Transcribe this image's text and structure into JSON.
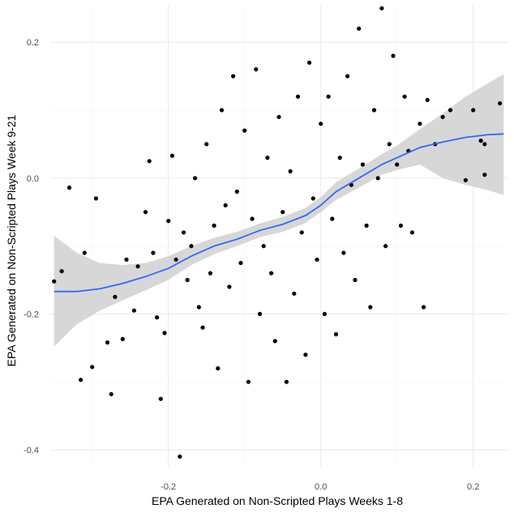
{
  "chart_data": {
    "type": "scatter",
    "title": "",
    "xlabel": "EPA Generated on Non-Scripted Plays Weeks 1-8",
    "ylabel": "EPA Generated on Non-Scripted Plays Week 9-21",
    "xlim": [
      -0.355,
      0.245
    ],
    "ylim": [
      -0.425,
      0.255
    ],
    "x_ticks": [
      -0.2,
      0.0,
      0.2
    ],
    "x_tick_labels": [
      "-0.2",
      "0.0",
      "0.2"
    ],
    "y_ticks": [
      -0.4,
      -0.2,
      0.0,
      0.2
    ],
    "y_tick_labels": [
      "-0.4",
      "-0.2",
      "0.0",
      "0.2"
    ],
    "grid": true,
    "legend": "none",
    "colors": {
      "points": "#000000",
      "smooth_line": "#3366ff",
      "confidence_band": "#d3d3d3",
      "grid_major": "#ebebeb",
      "grid_minor": "#f5f5f5"
    },
    "smooth": {
      "method": "loess",
      "x": [
        -0.35,
        -0.32,
        -0.29,
        -0.26,
        -0.23,
        -0.2,
        -0.17,
        -0.14,
        -0.11,
        -0.08,
        -0.05,
        -0.02,
        0.0,
        0.02,
        0.05,
        0.08,
        0.1,
        0.13,
        0.16,
        0.19,
        0.22,
        0.24
      ],
      "y": [
        -0.167,
        -0.167,
        -0.163,
        -0.155,
        -0.145,
        -0.133,
        -0.115,
        -0.1,
        -0.09,
        -0.077,
        -0.068,
        -0.055,
        -0.04,
        -0.02,
        0.0,
        0.02,
        0.03,
        0.045,
        0.053,
        0.06,
        0.064,
        0.065
      ],
      "ci_lower": [
        -0.248,
        -0.215,
        -0.195,
        -0.18,
        -0.165,
        -0.15,
        -0.128,
        -0.112,
        -0.1,
        -0.087,
        -0.079,
        -0.066,
        -0.05,
        -0.032,
        -0.014,
        0.005,
        0.012,
        0.02,
        0.0,
        -0.01,
        -0.018,
        -0.025
      ],
      "ci_upper": [
        -0.085,
        -0.11,
        -0.125,
        -0.128,
        -0.125,
        -0.115,
        -0.1,
        -0.088,
        -0.079,
        -0.067,
        -0.057,
        -0.044,
        -0.028,
        -0.006,
        0.014,
        0.035,
        0.048,
        0.072,
        0.095,
        0.12,
        0.14,
        0.153
      ]
    },
    "points": [
      [
        -0.35,
        -0.152
      ],
      [
        -0.34,
        -0.137
      ],
      [
        -0.33,
        -0.014
      ],
      [
        -0.315,
        -0.297
      ],
      [
        -0.31,
        -0.11
      ],
      [
        -0.3,
        -0.278
      ],
      [
        -0.295,
        -0.03
      ],
      [
        -0.28,
        -0.242
      ],
      [
        -0.275,
        -0.318
      ],
      [
        -0.27,
        -0.175
      ],
      [
        -0.26,
        -0.237
      ],
      [
        -0.255,
        -0.12
      ],
      [
        -0.245,
        -0.195
      ],
      [
        -0.24,
        -0.13
      ],
      [
        -0.23,
        -0.05
      ],
      [
        -0.225,
        0.025
      ],
      [
        -0.22,
        -0.11
      ],
      [
        -0.215,
        -0.205
      ],
      [
        -0.21,
        -0.325
      ],
      [
        -0.205,
        -0.228
      ],
      [
        -0.2,
        -0.063
      ],
      [
        -0.195,
        0.033
      ],
      [
        -0.19,
        -0.12
      ],
      [
        -0.185,
        -0.41
      ],
      [
        -0.18,
        -0.08
      ],
      [
        -0.175,
        -0.15
      ],
      [
        -0.17,
        -0.1
      ],
      [
        -0.165,
        0.0
      ],
      [
        -0.16,
        -0.19
      ],
      [
        -0.155,
        -0.22
      ],
      [
        -0.15,
        0.05
      ],
      [
        -0.145,
        -0.14
      ],
      [
        -0.14,
        -0.07
      ],
      [
        -0.135,
        -0.28
      ],
      [
        -0.13,
        0.1
      ],
      [
        -0.125,
        -0.04
      ],
      [
        -0.12,
        -0.16
      ],
      [
        -0.115,
        0.15
      ],
      [
        -0.11,
        -0.02
      ],
      [
        -0.105,
        -0.125
      ],
      [
        -0.1,
        0.07
      ],
      [
        -0.095,
        -0.3
      ],
      [
        -0.09,
        -0.06
      ],
      [
        -0.085,
        0.16
      ],
      [
        -0.08,
        -0.2
      ],
      [
        -0.075,
        -0.1
      ],
      [
        -0.07,
        0.03
      ],
      [
        -0.065,
        -0.14
      ],
      [
        -0.06,
        -0.24
      ],
      [
        -0.055,
        0.09
      ],
      [
        -0.05,
        -0.05
      ],
      [
        -0.045,
        -0.3
      ],
      [
        -0.04,
        0.01
      ],
      [
        -0.035,
        -0.17
      ],
      [
        -0.03,
        0.12
      ],
      [
        -0.025,
        -0.08
      ],
      [
        -0.02,
        -0.26
      ],
      [
        -0.015,
        0.17
      ],
      [
        -0.01,
        -0.03
      ],
      [
        -0.005,
        -0.12
      ],
      [
        0.0,
        0.08
      ],
      [
        0.005,
        -0.2
      ],
      [
        0.01,
        0.12
      ],
      [
        0.015,
        -0.06
      ],
      [
        0.02,
        -0.23
      ],
      [
        0.025,
        0.03
      ],
      [
        0.03,
        -0.11
      ],
      [
        0.035,
        0.15
      ],
      [
        0.04,
        -0.01
      ],
      [
        0.045,
        -0.15
      ],
      [
        0.05,
        0.22
      ],
      [
        0.055,
        0.02
      ],
      [
        0.06,
        -0.07
      ],
      [
        0.065,
        -0.19
      ],
      [
        0.07,
        0.1
      ],
      [
        0.075,
        0.0
      ],
      [
        0.08,
        0.25
      ],
      [
        0.085,
        -0.1
      ],
      [
        0.09,
        0.05
      ],
      [
        0.095,
        0.18
      ],
      [
        0.1,
        0.02
      ],
      [
        0.105,
        -0.07
      ],
      [
        0.11,
        0.12
      ],
      [
        0.115,
        0.04
      ],
      [
        0.12,
        -0.08
      ],
      [
        0.13,
        0.08
      ],
      [
        0.135,
        -0.19
      ],
      [
        0.14,
        0.115
      ],
      [
        0.15,
        0.05
      ],
      [
        0.16,
        0.09
      ],
      [
        0.17,
        0.1
      ],
      [
        0.19,
        -0.003
      ],
      [
        0.2,
        0.1
      ],
      [
        0.21,
        0.055
      ],
      [
        0.215,
        0.005
      ],
      [
        0.235,
        0.11
      ],
      [
        0.215,
        0.05
      ]
    ]
  }
}
